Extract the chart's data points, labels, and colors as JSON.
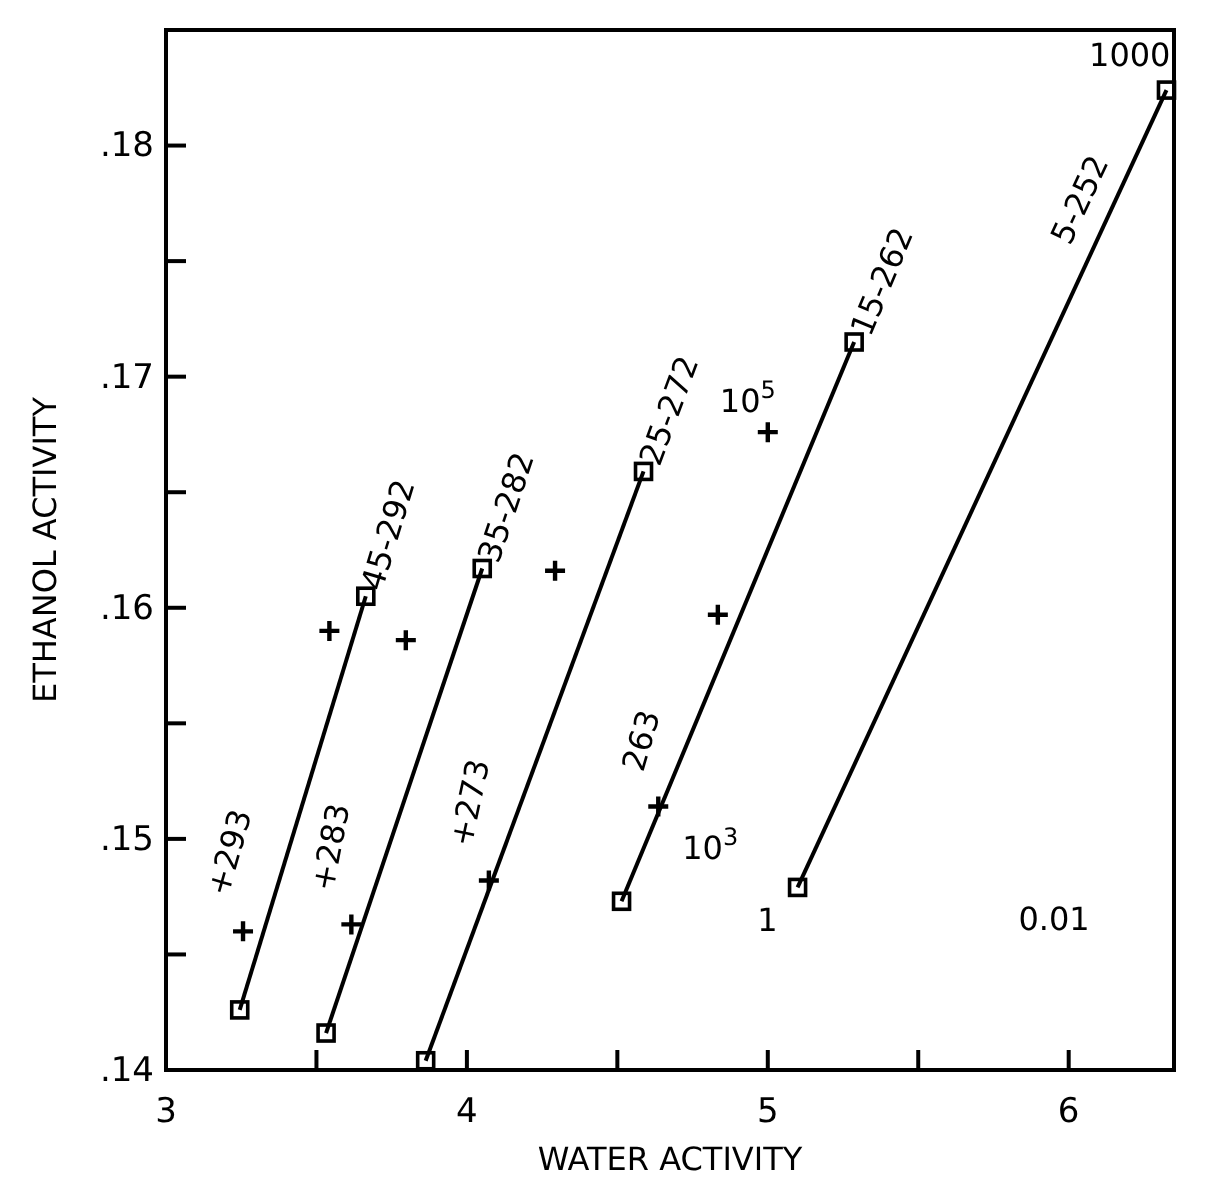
{
  "chart_data": {
    "type": "line",
    "xlabel": "WATER ACTIVITY",
    "ylabel": "ETHANOL ACTIVITY",
    "xlim": [
      3,
      6.35
    ],
    "xticks": [
      3,
      {
        "value": 3.5,
        "label": null
      },
      4,
      {
        "value": 4.5,
        "label": null
      },
      5,
      {
        "value": 5.5,
        "label": null
      },
      6
    ],
    "ylim": [
      0.14,
      0.185
    ],
    "yticks": [
      {
        "value": 0.14,
        "label": ".14"
      },
      {
        "value": 0.145,
        "label": null
      },
      {
        "value": 0.15,
        "label": ".15"
      },
      {
        "value": 0.155,
        "label": null
      },
      {
        "value": 0.16,
        "label": ".16"
      },
      {
        "value": 0.165,
        "label": null
      },
      {
        "value": 0.17,
        "label": ".17"
      },
      {
        "value": 0.175,
        "label": null
      },
      {
        "value": 0.18,
        "label": ".18"
      }
    ],
    "grid": false,
    "legend": false,
    "color": "#000000",
    "series": [
      {
        "name": "45-292",
        "marker": "square",
        "color": "#000000",
        "x": [
          3.245,
          3.664
        ],
        "values": [
          0.1426,
          0.1605
        ]
      },
      {
        "name": "35-282",
        "marker": "square",
        "color": "#000000",
        "x": [
          3.532,
          4.051
        ],
        "values": [
          0.1416,
          0.1617
        ]
      },
      {
        "name": "25-272",
        "marker": "square",
        "color": "#000000",
        "x": [
          3.863,
          4.587
        ],
        "values": [
          0.1404,
          0.1659
        ]
      },
      {
        "name": "15-262",
        "marker": "square",
        "color": "#000000",
        "x": [
          4.514,
          5.287
        ],
        "values": [
          0.1473,
          0.1715
        ]
      },
      {
        "name": "5-252",
        "marker": "square",
        "color": "#000000",
        "x": [
          5.099,
          6.325
        ],
        "values": [
          0.1479,
          0.1824
        ]
      },
      {
        "name": "+293",
        "type": "scatter",
        "marker": "cross",
        "color": "#000000",
        "x": [
          3.256,
          3.543
        ],
        "values": [
          0.146,
          0.159
        ]
      },
      {
        "name": "+283",
        "type": "scatter",
        "marker": "cross",
        "color": "#000000",
        "x": [
          3.616,
          3.797
        ],
        "values": [
          0.1463,
          0.1586
        ]
      },
      {
        "name": "+273",
        "type": "scatter",
        "marker": "cross",
        "color": "#000000",
        "x": [
          4.073,
          4.293
        ],
        "values": [
          0.1482,
          0.1616
        ]
      },
      {
        "name": "263",
        "type": "scatter",
        "marker": "cross",
        "color": "#000000",
        "x": [
          4.636,
          4.834,
          5.0
        ],
        "values": [
          0.1514,
          0.1597,
          0.1676
        ]
      }
    ],
    "annotations": [
      {
        "text": "1000",
        "x": 6.325,
        "y": 0.1824
      },
      {
        "text": "1",
        "x": 5.099,
        "y": 0.1479
      },
      {
        "text": "10$^{5}$",
        "x": 5.0,
        "y": 0.1676
      },
      {
        "text": "10$^{3}$",
        "x": 4.636,
        "y": 0.1514
      },
      "0.01"
    ]
  }
}
